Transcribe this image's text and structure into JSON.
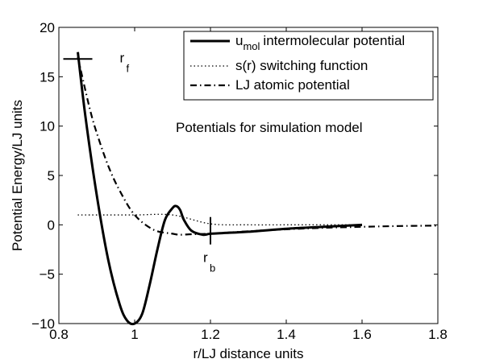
{
  "chart_data": {
    "type": "line",
    "xlabel": "r/LJ distance units",
    "ylabel": "Potential Energy/LJ units",
    "annotation": "Potentials for simulation model",
    "xlim": [
      0.8,
      1.8
    ],
    "ylim": [
      -10,
      20
    ],
    "xticks": [
      0.8,
      1,
      1.2,
      1.4,
      1.6,
      1.8
    ],
    "xtick_labels": [
      "0.8",
      "1",
      "1.2",
      "1.4",
      "1.6",
      "1.8"
    ],
    "yticks": [
      -10,
      -5,
      0,
      5,
      10,
      15,
      20
    ],
    "ytick_labels": [
      "−10",
      "−5",
      "0",
      "5",
      "10",
      "15",
      "20"
    ],
    "grid": false,
    "legend_position": "top-right",
    "series": [
      {
        "name_main": "u",
        "name_sub": "mol",
        "name_rest": "intermolecular potential",
        "style": "solid",
        "x": [
          0.85,
          0.87,
          0.9,
          0.93,
          0.96,
          0.98,
          1.0,
          1.02,
          1.04,
          1.06,
          1.08,
          1.1,
          1.11,
          1.12,
          1.13,
          1.15,
          1.18,
          1.2,
          1.25,
          1.3,
          1.4,
          1.5,
          1.6
        ],
        "y": [
          17.5,
          11.0,
          3.0,
          -3.5,
          -8.0,
          -9.7,
          -10.0,
          -9.0,
          -6.0,
          -2.5,
          0.5,
          1.7,
          1.9,
          1.5,
          0.5,
          -0.6,
          -1.0,
          -0.9,
          -0.8,
          -0.7,
          -0.4,
          -0.2,
          0.0
        ]
      },
      {
        "name": "s(r) switching function",
        "style": "dotted",
        "x": [
          0.85,
          0.9,
          1.0,
          1.1,
          1.2,
          1.3,
          1.4,
          1.5,
          1.6
        ],
        "y": [
          1.0,
          1.0,
          1.0,
          1.0,
          0.1,
          0.0,
          0.0,
          0.0,
          0.0
        ]
      },
      {
        "name": "LJ atomic potential",
        "style": "dashdot",
        "x": [
          0.85,
          0.88,
          0.9,
          0.93,
          0.96,
          1.0,
          1.05,
          1.1,
          1.12,
          1.15,
          1.2,
          1.3,
          1.4,
          1.5,
          1.6,
          1.7,
          1.8
        ],
        "y": [
          17.0,
          12.0,
          9.3,
          6.0,
          3.5,
          1.0,
          -0.5,
          -0.9,
          -1.0,
          -0.95,
          -0.9,
          -0.65,
          -0.45,
          -0.3,
          -0.2,
          -0.12,
          -0.08
        ]
      }
    ],
    "markers": [
      {
        "label": "r",
        "sub": "f",
        "x": 0.85,
        "y": 16.8,
        "orientation": "horizontal"
      },
      {
        "label": "r",
        "sub": "b",
        "x": 1.2,
        "y": -0.6,
        "orientation": "vertical"
      }
    ]
  }
}
